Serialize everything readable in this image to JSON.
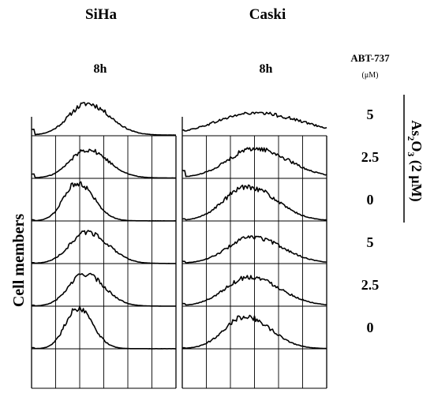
{
  "figure": {
    "cell_lines": [
      {
        "name": "SiHa",
        "time": "8h"
      },
      {
        "name": "Caski",
        "time": "8h"
      }
    ],
    "abt_header": "ABT-737",
    "abt_unit": "(μM)",
    "y_axis_label": "Cell members",
    "as2o3_label": {
      "prefix": "As",
      "sub1": "2",
      "mid": "O",
      "sub2": "3",
      "suffix": " (2 μM)"
    },
    "row_labels": [
      "5",
      "2.5",
      "0",
      "5",
      "2.5",
      "0"
    ]
  },
  "chart_data": {
    "type": "line",
    "description_of_axes": "flow cytometry histograms: x = fluorescence (grid columns), y = cell count",
    "xlim": [
      0,
      6
    ],
    "ylim": [
      0,
      1
    ],
    "grid": true,
    "panels": [
      {
        "cell_line": "SiHa",
        "rows": [
          {
            "abt737": "5",
            "as2o3": "2 μM",
            "peak_x": 2.3,
            "width": 0.75,
            "height": 0.78,
            "left_spike": 0.35
          },
          {
            "abt737": "2.5",
            "as2o3": "2 μM",
            "peak_x": 2.3,
            "width": 0.7,
            "height": 0.7,
            "left_spike": 0.25
          },
          {
            "abt737": "0",
            "as2o3": "2 μM",
            "peak_x": 1.9,
            "width": 0.55,
            "height": 0.95,
            "left_spike": 0.05
          },
          {
            "abt737": "5",
            "as2o3": "none",
            "peak_x": 2.3,
            "width": 0.7,
            "height": 0.78,
            "left_spike": 0.05
          },
          {
            "abt737": "2.5",
            "as2o3": "none",
            "peak_x": 2.2,
            "width": 0.65,
            "height": 0.8,
            "left_spike": 0.05
          },
          {
            "abt737": "0",
            "as2o3": "none",
            "peak_x": 1.9,
            "width": 0.5,
            "height": 1.0,
            "left_spike": 0.05
          }
        ]
      },
      {
        "cell_line": "Caski",
        "rows": [
          {
            "abt737": "5",
            "as2o3": "2 μM",
            "peak_x": 3.0,
            "width": 1.6,
            "height": 0.55,
            "left_spike": 0.4
          },
          {
            "abt737": "2.5",
            "as2o3": "2 μM",
            "peak_x": 3.0,
            "width": 1.1,
            "height": 0.72,
            "left_spike": 0.45
          },
          {
            "abt737": "0",
            "as2o3": "2 μM",
            "peak_x": 2.7,
            "width": 0.95,
            "height": 0.85,
            "left_spike": 0.1
          },
          {
            "abt737": "5",
            "as2o3": "none",
            "peak_x": 2.9,
            "width": 1.0,
            "height": 0.65,
            "left_spike": 0.15
          },
          {
            "abt737": "2.5",
            "as2o3": "none",
            "peak_x": 2.8,
            "width": 1.0,
            "height": 0.72,
            "left_spike": 0.15
          },
          {
            "abt737": "0",
            "as2o3": "none",
            "peak_x": 2.6,
            "width": 0.85,
            "height": 0.8,
            "left_spike": 0.05
          }
        ]
      }
    ]
  }
}
